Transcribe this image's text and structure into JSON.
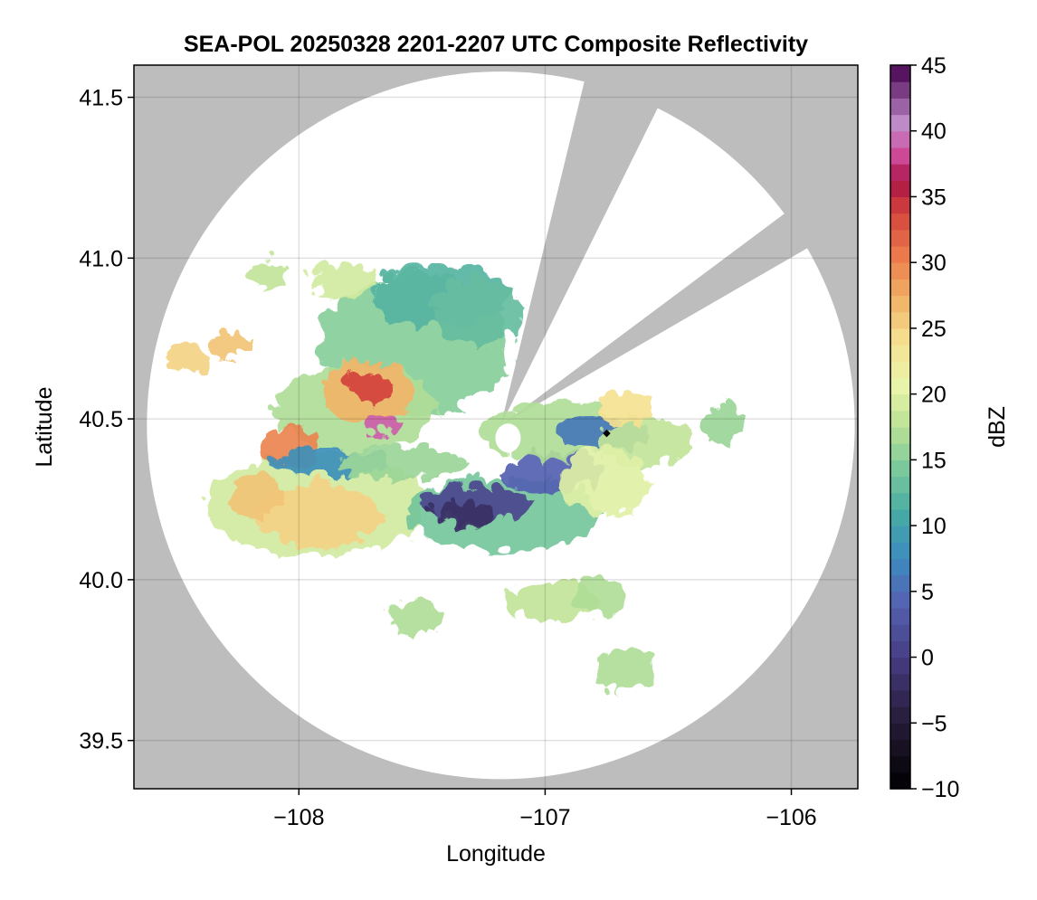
{
  "chart_data": {
    "type": "heatmap",
    "title": "SEA-POL 20250328 2201-2207 UTC Composite Reflectivity",
    "xlabel": "Longitude",
    "ylabel": "Latitude",
    "xlim": [
      -108.67,
      -105.73
    ],
    "ylim": [
      39.35,
      41.6
    ],
    "xticks": [
      -108,
      -107,
      -106
    ],
    "xtick_labels": [
      "−108",
      "−107",
      "−106"
    ],
    "yticks": [
      39.5,
      40.0,
      40.5,
      41.0,
      41.5
    ],
    "ytick_labels": [
      "39.5",
      "40.0",
      "40.5",
      "41.0",
      "41.5"
    ],
    "grid": true,
    "background_color": "#bdbdbd",
    "radar": {
      "center_lon": -107.18,
      "center_lat": 40.48,
      "range_lat_deg": 1.1,
      "marker_lon": -106.75,
      "marker_lat": 40.455,
      "blocked_sectors": [
        {
          "from_lon": -106.85,
          "from_lat": 41.52,
          "to_lon": -106.56,
          "to_lat": 41.44
        },
        {
          "from_lon": -106.06,
          "from_lat": 41.12,
          "to_lon": -105.96,
          "to_lat": 41.02
        }
      ]
    },
    "colorbar": {
      "label": "dBZ",
      "min": -10,
      "max": 45,
      "ticks": [
        -10,
        -5,
        0,
        5,
        10,
        15,
        20,
        25,
        30,
        35,
        40,
        45
      ],
      "tick_labels": [
        "−10",
        "−5",
        "0",
        "5",
        "10",
        "15",
        "20",
        "25",
        "30",
        "35",
        "40",
        "45"
      ],
      "levels": 44,
      "colormap": "Spectral_r"
    },
    "echo_regions": [
      {
        "lon": -107.55,
        "lat": 40.75,
        "rx": 0.3,
        "ry": 0.22,
        "dbz": 15
      },
      {
        "lon": -107.45,
        "lat": 40.9,
        "rx": 0.22,
        "ry": 0.1,
        "dbz": 12
      },
      {
        "lon": -107.3,
        "lat": 40.85,
        "rx": 0.14,
        "ry": 0.1,
        "dbz": 13
      },
      {
        "lon": -107.8,
        "lat": 40.55,
        "rx": 0.25,
        "ry": 0.14,
        "dbz": 17
      },
      {
        "lon": -107.75,
        "lat": 40.6,
        "rx": 0.14,
        "ry": 0.1,
        "dbz": 27
      },
      {
        "lon": -107.73,
        "lat": 40.62,
        "rx": 0.07,
        "ry": 0.05,
        "dbz": 34
      },
      {
        "lon": -107.7,
        "lat": 40.5,
        "rx": 0.06,
        "ry": 0.03,
        "dbz": 39
      },
      {
        "lon": -107.95,
        "lat": 40.25,
        "rx": 0.35,
        "ry": 0.16,
        "dbz": 19
      },
      {
        "lon": -107.95,
        "lat": 40.22,
        "rx": 0.2,
        "ry": 0.1,
        "dbz": 25
      },
      {
        "lon": -108.2,
        "lat": 40.28,
        "rx": 0.08,
        "ry": 0.07,
        "dbz": 26
      },
      {
        "lon": -108.05,
        "lat": 40.43,
        "rx": 0.1,
        "ry": 0.06,
        "dbz": 30
      },
      {
        "lon": -107.9,
        "lat": 40.38,
        "rx": 0.17,
        "ry": 0.04,
        "dbz": 8
      },
      {
        "lon": -107.6,
        "lat": 40.38,
        "rx": 0.2,
        "ry": 0.05,
        "dbz": 16
      },
      {
        "lon": -107.2,
        "lat": 40.22,
        "rx": 0.3,
        "ry": 0.11,
        "dbz": 14
      },
      {
        "lon": -107.3,
        "lat": 40.25,
        "rx": 0.16,
        "ry": 0.06,
        "dbz": 1
      },
      {
        "lon": -107.35,
        "lat": 40.22,
        "rx": 0.09,
        "ry": 0.04,
        "dbz": -2
      },
      {
        "lon": -107.0,
        "lat": 40.35,
        "rx": 0.16,
        "ry": 0.06,
        "dbz": 4
      },
      {
        "lon": -107.0,
        "lat": 40.48,
        "rx": 0.22,
        "ry": 0.09,
        "dbz": 17
      },
      {
        "lon": -106.8,
        "lat": 40.47,
        "rx": 0.14,
        "ry": 0.06,
        "dbz": 6
      },
      {
        "lon": -106.62,
        "lat": 40.45,
        "rx": 0.14,
        "ry": 0.08,
        "dbz": 18
      },
      {
        "lon": -106.78,
        "lat": 40.32,
        "rx": 0.14,
        "ry": 0.1,
        "dbz": 20
      },
      {
        "lon": -106.7,
        "lat": 40.55,
        "rx": 0.08,
        "ry": 0.05,
        "dbz": 24
      },
      {
        "lon": -108.48,
        "lat": 40.7,
        "rx": 0.07,
        "ry": 0.05,
        "dbz": 25
      },
      {
        "lon": -108.3,
        "lat": 40.75,
        "rx": 0.06,
        "ry": 0.04,
        "dbz": 26
      },
      {
        "lon": -107.85,
        "lat": 40.95,
        "rx": 0.1,
        "ry": 0.05,
        "dbz": 19
      },
      {
        "lon": -108.15,
        "lat": 40.97,
        "rx": 0.05,
        "ry": 0.04,
        "dbz": 18
      },
      {
        "lon": -107.0,
        "lat": 39.95,
        "rx": 0.15,
        "ry": 0.06,
        "dbz": 18
      },
      {
        "lon": -106.8,
        "lat": 39.97,
        "rx": 0.08,
        "ry": 0.06,
        "dbz": 17
      },
      {
        "lon": -107.55,
        "lat": 39.9,
        "rx": 0.08,
        "ry": 0.05,
        "dbz": 17
      },
      {
        "lon": -106.7,
        "lat": 39.74,
        "rx": 0.09,
        "ry": 0.07,
        "dbz": 17
      },
      {
        "lon": -106.3,
        "lat": 40.5,
        "rx": 0.06,
        "ry": 0.06,
        "dbz": 16
      }
    ]
  }
}
